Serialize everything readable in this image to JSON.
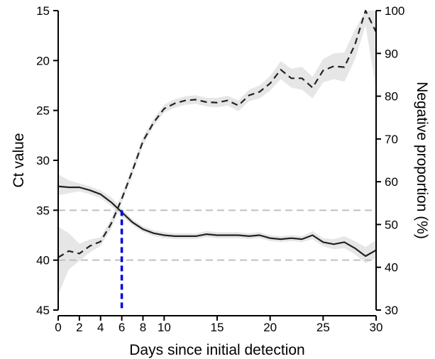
{
  "chart_data": {
    "type": "line",
    "title": "",
    "xlabel": "Days since initial detection",
    "ylabel_left": "Ct value",
    "ylabel_right": "Negative proportion (%)",
    "xlim": [
      0,
      30
    ],
    "ylim_left": [
      15,
      45
    ],
    "ylim_left_inverted": true,
    "ylim_right": [
      30,
      100
    ],
    "x_ticks": [
      0,
      2,
      4,
      6,
      8,
      10,
      15,
      20,
      25,
      30
    ],
    "y_left_ticks": [
      15,
      20,
      25,
      30,
      35,
      40,
      45
    ],
    "y_right_ticks": [
      30,
      40,
      50,
      60,
      70,
      80,
      90,
      100
    ],
    "grid": false,
    "colors": {
      "series": "#222222",
      "ribbon": "#e6e6e6",
      "reference": "#c0c0c0",
      "marker": "#0000dd"
    },
    "reference_lines_ct": [
      35,
      40
    ],
    "marker": {
      "x": 6,
      "ct": 35
    },
    "series": [
      {
        "axis": "left",
        "style": "solid",
        "x": [
          0,
          1,
          2,
          3,
          4,
          5,
          6,
          7,
          8,
          9,
          10,
          11,
          12,
          13,
          14,
          15,
          16,
          17,
          18,
          19,
          20,
          21,
          22,
          23,
          24,
          25,
          26,
          27,
          28,
          29,
          30
        ],
        "values": [
          32.6,
          32.7,
          32.7,
          33.0,
          33.4,
          34.2,
          35.2,
          36.2,
          36.9,
          37.3,
          37.5,
          37.6,
          37.6,
          37.6,
          37.4,
          37.5,
          37.5,
          37.5,
          37.6,
          37.5,
          37.8,
          37.9,
          37.8,
          37.9,
          37.5,
          38.2,
          38.4,
          38.2,
          38.8,
          39.6,
          39.0
        ],
        "lower": [
          31.4,
          32.0,
          32.3,
          32.6,
          33.0,
          33.7,
          34.8,
          35.9,
          36.6,
          37.0,
          37.2,
          37.3,
          37.3,
          37.3,
          37.1,
          37.2,
          37.2,
          37.2,
          37.3,
          37.2,
          37.5,
          37.6,
          37.5,
          37.6,
          37.1,
          37.8,
          37.9,
          37.6,
          38.1,
          38.7,
          38.0
        ],
        "upper": [
          33.5,
          33.3,
          33.1,
          33.4,
          33.8,
          34.6,
          35.6,
          36.5,
          37.2,
          37.6,
          37.8,
          37.9,
          37.9,
          37.9,
          37.7,
          37.8,
          37.8,
          37.8,
          37.9,
          37.8,
          38.1,
          38.2,
          38.1,
          38.2,
          37.9,
          38.6,
          38.9,
          38.8,
          39.4,
          40.3,
          39.8
        ]
      },
      {
        "axis": "right",
        "style": "dashed",
        "x": [
          0,
          1,
          2,
          3,
          4,
          5,
          6,
          7,
          8,
          9,
          10,
          11,
          12,
          13,
          14,
          15,
          16,
          17,
          18,
          19,
          20,
          21,
          22,
          23,
          24,
          25,
          26,
          27,
          28,
          29,
          30
        ],
        "values": [
          42.3,
          43.8,
          43.2,
          45.0,
          46.0,
          50.2,
          56.0,
          62.5,
          69.5,
          73.8,
          77.1,
          78.3,
          79.0,
          79.2,
          78.6,
          78.5,
          79.0,
          77.8,
          80.2,
          81.0,
          83.0,
          86.2,
          84.2,
          84.2,
          82.0,
          86.0,
          87.0,
          86.8,
          92.0,
          100.0,
          95.0
        ],
        "lower": [
          33.5,
          39.5,
          41.5,
          43.5,
          45.0,
          49.0,
          55.0,
          61.5,
          68.5,
          72.9,
          76.2,
          77.3,
          78.0,
          78.2,
          77.6,
          77.4,
          77.8,
          76.5,
          78.8,
          79.5,
          81.3,
          84.0,
          82.0,
          81.5,
          79.5,
          83.2,
          84.0,
          83.4,
          88.5,
          96.5,
          81.8
        ],
        "upper": [
          49.5,
          48.0,
          45.5,
          46.5,
          47.0,
          51.3,
          57.0,
          63.5,
          70.5,
          74.7,
          78.0,
          79.3,
          80.0,
          80.2,
          79.6,
          79.6,
          80.1,
          79.0,
          81.5,
          82.5,
          84.7,
          88.2,
          86.4,
          86.9,
          84.5,
          88.7,
          90.0,
          90.2,
          95.5,
          100.0,
          100.0
        ]
      }
    ]
  }
}
